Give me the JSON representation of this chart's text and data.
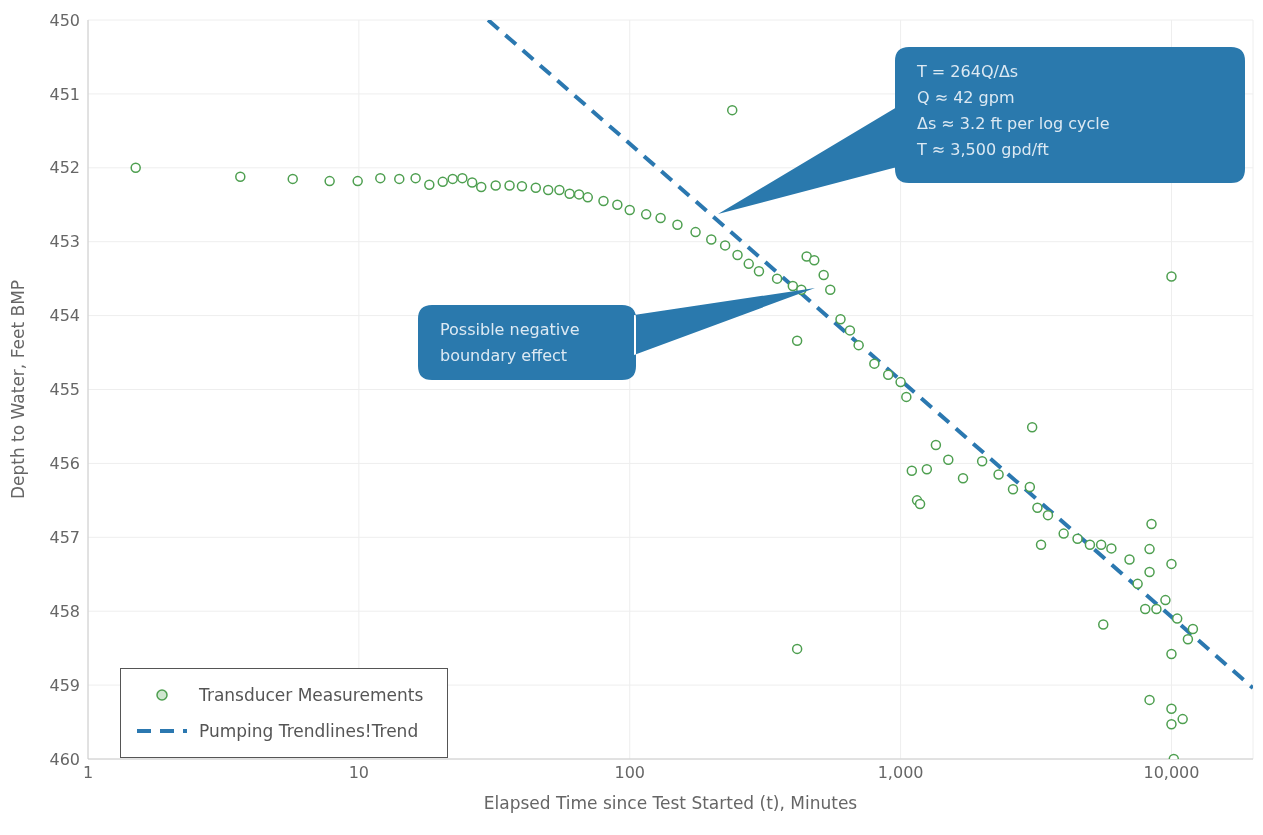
{
  "chart_data": {
    "type": "scatter",
    "xlabel": "Elapsed Time since Test Started (t), Minutes",
    "ylabel": "Depth to Water, Feet BMP",
    "log": "x",
    "xlim": [
      1,
      20000
    ],
    "xticks": [
      1,
      10,
      100,
      {
        "value": 1000,
        "label": "1,000"
      },
      {
        "value": 10000,
        "label": "10,000"
      }
    ],
    "ylim": [
      460,
      450
    ],
    "yticks": [
      450,
      451,
      452,
      453,
      454,
      455,
      456,
      457,
      458,
      459,
      460
    ],
    "grid": true,
    "legend": "bottom left",
    "series": [
      {
        "name": "Transducer Measurements",
        "marker": "circle",
        "color": "#4e9f50",
        "x": [
          1.5,
          3.65,
          5.7,
          7.8,
          9.9,
          12,
          14.1,
          16.2,
          18.2,
          20.4,
          22.2,
          24.1,
          26.2,
          28.3,
          32,
          36,
          40,
          45,
          50,
          55,
          60,
          65,
          70,
          80,
          90,
          100,
          115,
          130,
          150,
          175,
          200,
          225,
          250,
          275,
          300,
          350,
          400,
          430,
          450,
          480,
          520,
          550,
          600,
          650,
          700,
          800,
          900,
          1000,
          1050,
          1100,
          1150,
          1180,
          1250,
          1350,
          1500,
          1700,
          2000,
          2300,
          2600,
          3000,
          3200,
          3300,
          3500,
          4000,
          4500,
          5000,
          5500,
          5600,
          6000,
          7000,
          7500,
          8000,
          8300,
          8800,
          9500,
          10000,
          10200,
          10500,
          11000,
          11500,
          12000,
          239,
          415,
          415,
          3060,
          8440,
          8300,
          8300,
          10000,
          10000,
          10000,
          10000
        ],
        "values": [
          452.0,
          452.12,
          452.15,
          452.18,
          452.18,
          452.14,
          452.15,
          452.14,
          452.23,
          452.19,
          452.15,
          452.14,
          452.2,
          452.26,
          452.24,
          452.24,
          452.25,
          452.27,
          452.3,
          452.3,
          452.35,
          452.36,
          452.4,
          452.45,
          452.5,
          452.57,
          452.63,
          452.68,
          452.77,
          452.87,
          452.97,
          453.05,
          453.18,
          453.3,
          453.4,
          453.5,
          453.6,
          453.65,
          453.2,
          453.25,
          453.45,
          453.65,
          454.05,
          454.2,
          454.4,
          454.65,
          454.8,
          454.9,
          455.1,
          456.1,
          456.5,
          456.55,
          456.08,
          455.75,
          455.95,
          456.2,
          455.97,
          456.15,
          456.35,
          456.32,
          456.6,
          457.1,
          456.7,
          456.95,
          457.02,
          457.1,
          457.1,
          458.18,
          457.15,
          457.3,
          457.63,
          457.97,
          459.2,
          457.97,
          457.85,
          457.36,
          460.0,
          458.1,
          459.46,
          458.38,
          458.24,
          451.22,
          454.34,
          458.51,
          455.51,
          456.82,
          457.16,
          457.47,
          453.47,
          458.58,
          459.32,
          459.53
        ]
      },
      {
        "name": "Pumping Trendlines!Trend",
        "type": "line",
        "marker": "none",
        "line_style": "dashed",
        "color": "#2b78b0",
        "x": [
          30,
          20000
        ],
        "values": [
          450,
          459.04
        ]
      }
    ],
    "annotations": [
      "T = 264Q/Δs\nQ ≈ 42 gpm\nΔs ≈ 3.2 ft per log cycle\nT ≈ 3,500 gpd/ft",
      "Possible negative\nboundary effect"
    ]
  }
}
